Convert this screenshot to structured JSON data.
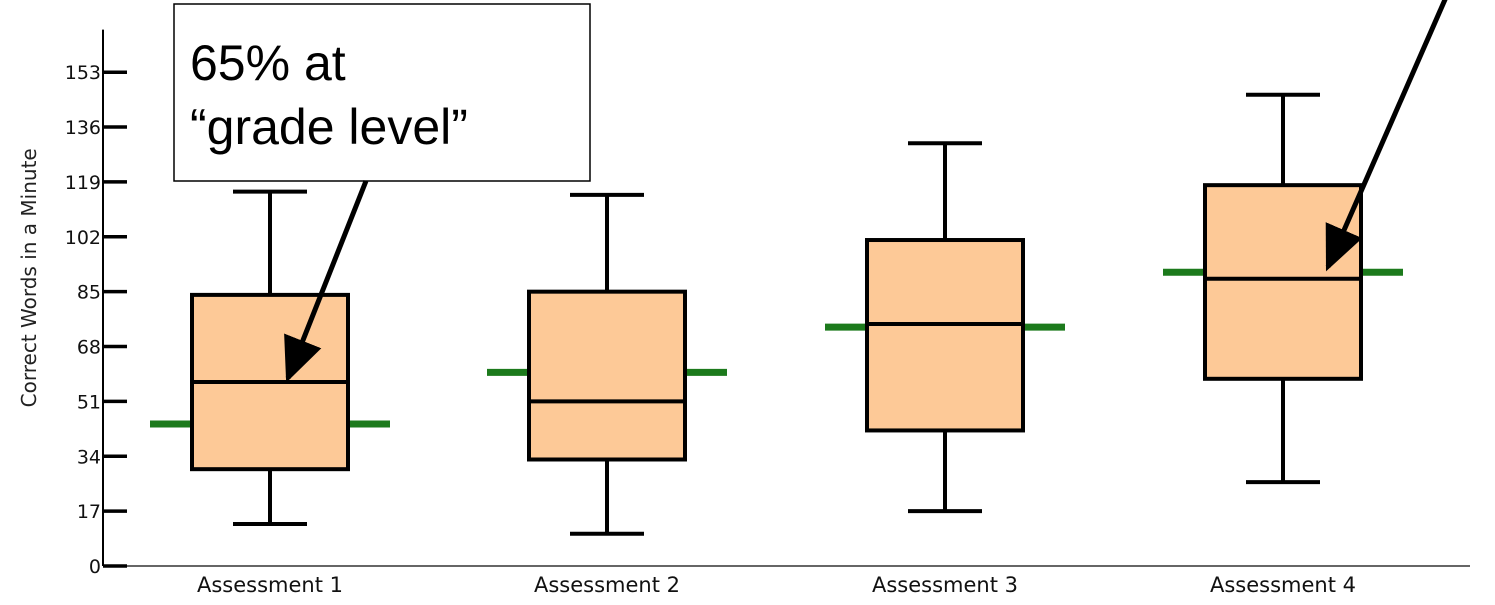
{
  "chart_data": {
    "type": "box",
    "ylabel": "Correct Words in a Minute",
    "ylim": [
      0,
      160
    ],
    "yticks": [
      0,
      17,
      34,
      51,
      68,
      85,
      102,
      119,
      136,
      153
    ],
    "grid": false,
    "categories": [
      "Assessment 1",
      "Assessment 2",
      "Assessment 3",
      "Assessment 4"
    ],
    "boxes": [
      {
        "min": 13,
        "q1": 30,
        "median": 57,
        "q3": 84,
        "max": 116,
        "benchmark": 44
      },
      {
        "min": 10,
        "q1": 33,
        "median": 51,
        "q3": 85,
        "max": 115,
        "benchmark": 60
      },
      {
        "min": 17,
        "q1": 42,
        "median": 75,
        "q3": 101,
        "max": 131,
        "benchmark": 74
      },
      {
        "min": 26,
        "q1": 58,
        "median": 89,
        "q3": 118,
        "max": 146,
        "benchmark": 91
      }
    ],
    "colors": {
      "box_fill": "#fdc997",
      "box_stroke": "#000000",
      "benchmark": "#1c7a1c"
    },
    "annotations": [
      {
        "lines": [
          "65% at",
          "“grade level”"
        ],
        "points_to_category": 0
      },
      {
        "lines": [],
        "points_to_category": 3
      }
    ]
  }
}
